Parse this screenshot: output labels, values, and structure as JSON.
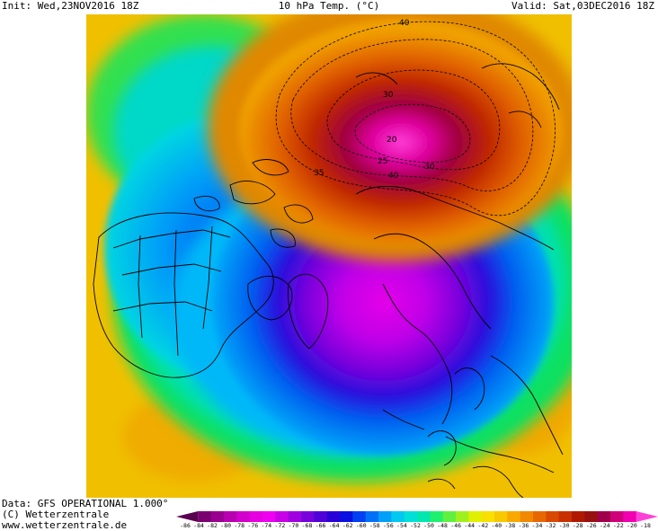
{
  "header": {
    "init": "Init: Wed,23NOV2016 18Z",
    "title": "10 hPa Temp. (°C)",
    "valid": "Valid: Sat,03DEC2016 18Z"
  },
  "map": {
    "contour_labels": [
      "40",
      "30",
      "20",
      "25",
      "30",
      "35",
      "40"
    ]
  },
  "footer": {
    "line1": "Data: GFS OPERATIONAL 1.000°",
    "line2": "(C) Wetterzentrale",
    "line3": "www.wetterzentrale.de"
  },
  "colorbar": {
    "labels": [
      "-86",
      "-84",
      "-82",
      "-80",
      "-78",
      "-76",
      "-74",
      "-72",
      "-70",
      "-68",
      "-66",
      "-64",
      "-62",
      "-60",
      "-58",
      "-56",
      "-54",
      "-52",
      "-50",
      "-48",
      "-46",
      "-44",
      "-42",
      "-40",
      "-38",
      "-36",
      "-34",
      "-32",
      "-30",
      "-28",
      "-26",
      "-24",
      "-22",
      "-20",
      "-18"
    ],
    "colors": [
      "#5a0050",
      "#7a0070",
      "#9a0090",
      "#b800b0",
      "#d200cc",
      "#e600e0",
      "#f000f0",
      "#c800e8",
      "#a000e0",
      "#7800dc",
      "#5000d8",
      "#2a00d8",
      "#0a10e0",
      "#0040f0",
      "#0070f8",
      "#00a0f8",
      "#00c8f0",
      "#00e0d8",
      "#00e8b0",
      "#20f070",
      "#60f040",
      "#a0f020",
      "#e0f000",
      "#f8e000",
      "#f8c800",
      "#f8a800",
      "#f08800",
      "#e86800",
      "#d84800",
      "#c83000",
      "#b01800",
      "#981010",
      "#a0004a",
      "#d0007a",
      "#f000b0",
      "#ff40d8"
    ]
  }
}
